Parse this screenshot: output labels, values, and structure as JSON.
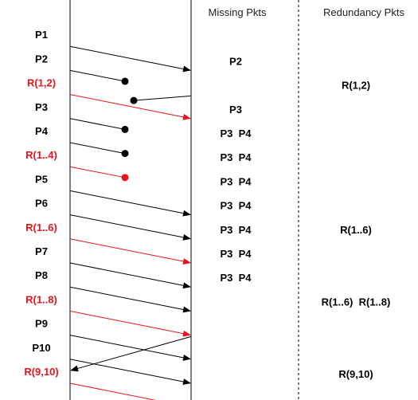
{
  "headers": {
    "missing": "Missing Pkts",
    "redundancy": "Redundancy Pkts"
  },
  "colors": {
    "data_packet": "#000000",
    "redundancy_packet": "#e8141b",
    "line": "#000000"
  },
  "packets": [
    {
      "label": "P1",
      "type": "data",
      "outcome": "delivered"
    },
    {
      "label": "P2",
      "type": "data",
      "outcome": "lost"
    },
    {
      "label": "R(1,2)",
      "type": "redundancy",
      "outcome": "delivered"
    },
    {
      "label": "P3",
      "type": "data",
      "outcome": "lost"
    },
    {
      "label": "P4",
      "type": "data",
      "outcome": "lost"
    },
    {
      "label": "R(1..4)",
      "type": "redundancy",
      "outcome": "lost"
    },
    {
      "label": "P5",
      "type": "data",
      "outcome": "delivered"
    },
    {
      "label": "P6",
      "type": "data",
      "outcome": "delivered"
    },
    {
      "label": "R(1..6)",
      "type": "redundancy",
      "outcome": "delivered"
    },
    {
      "label": "P7",
      "type": "data",
      "outcome": "delivered"
    },
    {
      "label": "P8",
      "type": "data",
      "outcome": "delivered"
    },
    {
      "label": "R(1..8)",
      "type": "redundancy",
      "outcome": "delivered"
    },
    {
      "label": "P9",
      "type": "data",
      "outcome": "delivered"
    },
    {
      "label": "P10",
      "type": "data",
      "outcome": "delivered"
    },
    {
      "label": "R(9,10)",
      "type": "redundancy",
      "outcome": "delivered"
    }
  ],
  "feedback": [
    {
      "from_packet": 2,
      "to_packet": 3
    },
    {
      "from_packet": 12,
      "to_packet": 14
    }
  ],
  "missing_rows": [
    {
      "row": 2,
      "text": "P2"
    },
    {
      "row": 4,
      "text": "P3"
    },
    {
      "row": 5,
      "text": "P3  P4"
    },
    {
      "row": 6,
      "text": "P3  P4"
    },
    {
      "row": 7,
      "text": "P3  P4"
    },
    {
      "row": 8,
      "text": "P3  P4"
    },
    {
      "row": 9,
      "text": "P3  P4"
    },
    {
      "row": 10,
      "text": "P3  P4"
    },
    {
      "row": 11,
      "text": "P3  P4"
    }
  ],
  "redundancy_rows": [
    {
      "row": 3,
      "text": "R(1,2)"
    },
    {
      "row": 9,
      "text": "R(1..6)"
    },
    {
      "row": 12,
      "text": "R(1..6)  R(1..8)"
    },
    {
      "row": 15,
      "text": "R(9,10)"
    }
  ]
}
